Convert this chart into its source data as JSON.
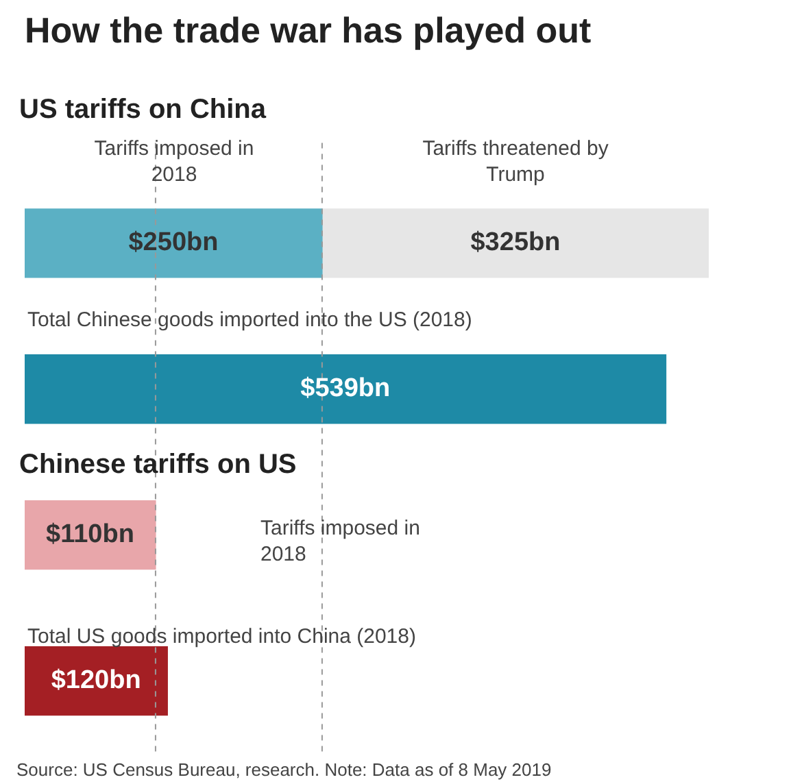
{
  "chart_data": {
    "type": "bar",
    "orientation": "horizontal",
    "stacked": true,
    "title": "How the trade war has played out",
    "categories": [
      null,
      null,
      null,
      null
    ],
    "series": [
      {
        "colors": [
          "#5bb0c4",
          "#1e8aa6",
          "#e8a6aa",
          "#a41f24"
        ],
        "values": [
          250,
          539,
          110,
          120
        ],
        "value_labels": [
          "$250bn",
          "$539bn",
          "$110bn",
          "$120bn"
        ]
      },
      {
        "color": "#e6e6e6",
        "values": [
          325,
          null,
          null,
          null
        ],
        "value_labels": [
          "$325bn",
          null,
          null,
          null
        ]
      }
    ],
    "data_labels": true,
    "ref_lines": [
      {
        "axis": "x",
        "value": 250,
        "color": "#999999",
        "line_style": "dashed"
      },
      {
        "axis": "x",
        "value": 110,
        "color": "#999999",
        "line_style": "dashed"
      }
    ],
    "annotations": [
      "US tariffs on China",
      "Tariffs imposed in 2018",
      "Tariffs threatened by Trump",
      "Total Chinese goods imported into the US (2018)",
      "Chinese tariffs on US",
      "Tariffs imposed in 2018",
      "Total US goods imported into China (2018)",
      "Source: US Census Bureau, research. Note: Data as of 8 May 2019"
    ],
    "legend": false
  }
}
